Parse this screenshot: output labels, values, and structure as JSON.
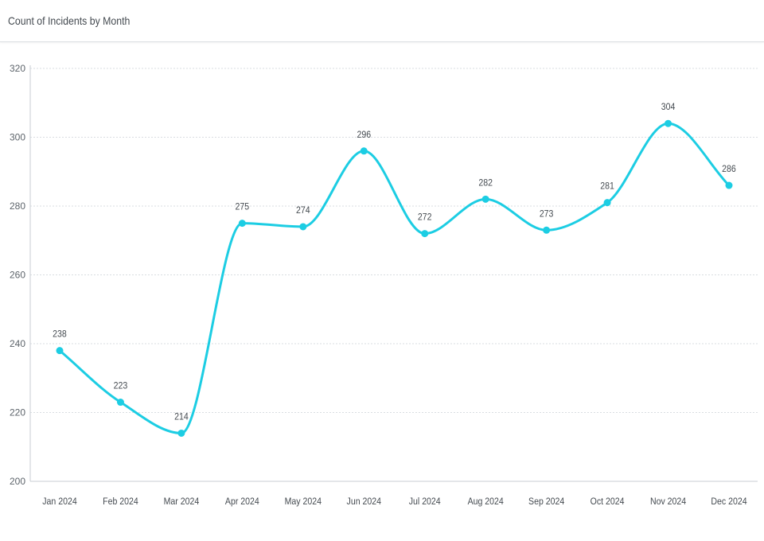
{
  "panel": {
    "title": "Count of Incidents by Month"
  },
  "chart_data": {
    "type": "line",
    "title": "Count of Incidents by Month",
    "xlabel": "",
    "ylabel": "",
    "categories": [
      "Jan 2024",
      "Feb 2024",
      "Mar 2024",
      "Apr 2024",
      "May 2024",
      "Jun 2024",
      "Jul 2024",
      "Aug 2024",
      "Sep 2024",
      "Oct 2024",
      "Nov 2024",
      "Dec 2024"
    ],
    "series": [
      {
        "values": [
          238,
          223,
          214,
          275,
          274,
          296,
          272,
          282,
          273,
          281,
          304,
          286
        ],
        "color": "#1ccde3"
      }
    ],
    "ylim": [
      200,
      320
    ],
    "yticks": [
      200,
      220,
      240,
      260,
      280,
      300,
      320
    ],
    "smooth": true,
    "data_labels": true,
    "grid": true,
    "legend": "none"
  }
}
